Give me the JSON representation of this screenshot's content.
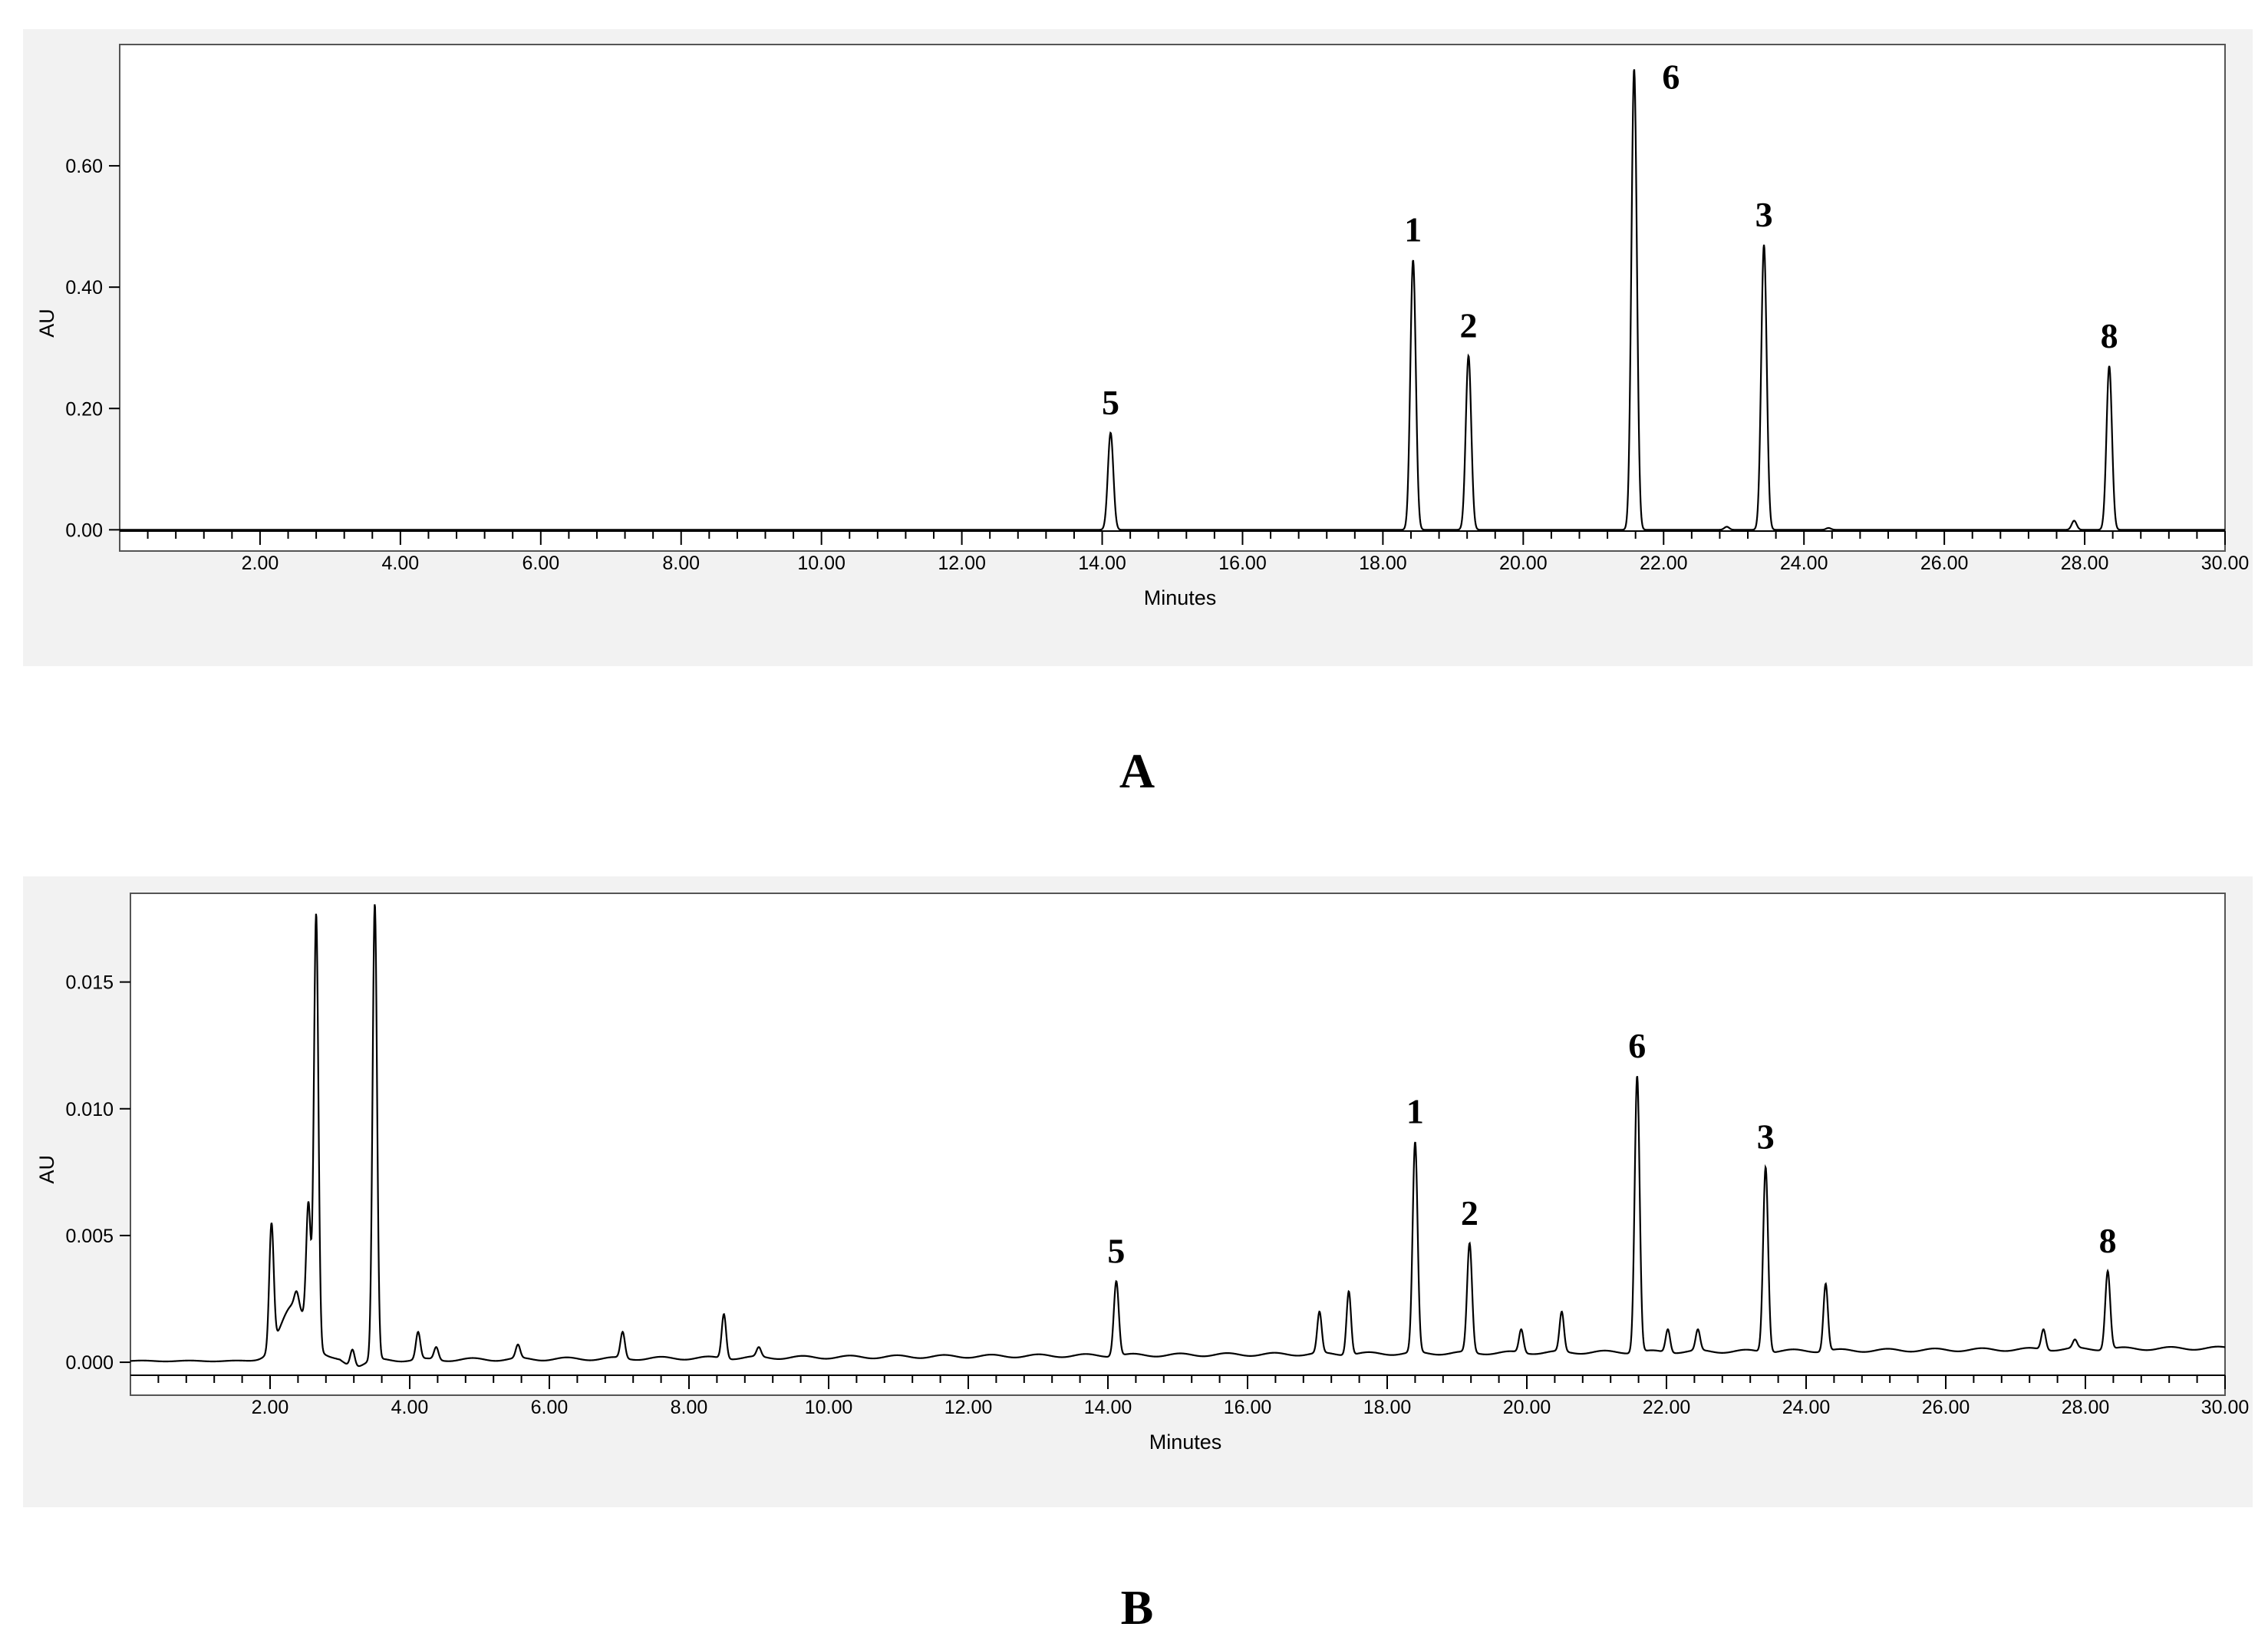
{
  "chart_data": [
    {
      "panel": "A",
      "type": "line",
      "caption": "A",
      "xlabel": "Minutes",
      "ylabel": "AU",
      "xlim": [
        0,
        30
      ],
      "ylim": [
        -0.035,
        0.8
      ],
      "x_ticks": [
        2,
        4,
        6,
        8,
        10,
        12,
        14,
        16,
        18,
        20,
        22,
        24,
        26,
        28,
        30
      ],
      "x_tick_labels": [
        "2.00",
        "4.00",
        "6.00",
        "8.00",
        "10.00",
        "12.00",
        "14.00",
        "16.00",
        "18.00",
        "20.00",
        "22.00",
        "24.00",
        "26.00",
        "28.00",
        "30.00"
      ],
      "y_ticks": [
        0,
        0.2,
        0.4,
        0.6
      ],
      "y_tick_labels": [
        "0.00",
        "0.20",
        "0.40",
        "0.60"
      ],
      "baseline": 0.0,
      "peaks": [
        {
          "label": "5",
          "x": 14.12,
          "y": 0.16
        },
        {
          "label": "1",
          "x": 18.43,
          "y": 0.445
        },
        {
          "label": "2",
          "x": 19.22,
          "y": 0.287
        },
        {
          "label": "6",
          "x": 21.58,
          "y": 0.76
        },
        {
          "label": "3",
          "x": 23.43,
          "y": 0.47
        },
        {
          "label": "8",
          "x": 28.35,
          "y": 0.27
        }
      ],
      "minor_peaks": [
        {
          "x": 22.9,
          "y": 0.005
        },
        {
          "x": 24.35,
          "y": 0.003
        },
        {
          "x": 27.85,
          "y": 0.015
        }
      ]
    },
    {
      "panel": "B",
      "type": "line",
      "caption": "B",
      "xlabel": "Minutes",
      "ylabel": "AU",
      "xlim": [
        0,
        30
      ],
      "ylim": [
        -0.0013,
        0.0185
      ],
      "x_ticks": [
        2,
        4,
        6,
        8,
        10,
        12,
        14,
        16,
        18,
        20,
        22,
        24,
        26,
        28,
        30
      ],
      "x_tick_labels": [
        "2.00",
        "4.00",
        "6.00",
        "8.00",
        "10.00",
        "12.00",
        "14.00",
        "16.00",
        "18.00",
        "20.00",
        "22.00",
        "24.00",
        "26.00",
        "28.00",
        "30.00"
      ],
      "y_ticks": [
        0,
        0.005,
        0.01,
        0.015
      ],
      "y_tick_labels": [
        "0.000",
        "0.005",
        "0.010",
        "0.015"
      ],
      "peaks": [
        {
          "label": "5",
          "x": 14.12,
          "y": 0.0032
        },
        {
          "label": "1",
          "x": 18.4,
          "y": 0.0087
        },
        {
          "label": "2",
          "x": 19.18,
          "y": 0.0047
        },
        {
          "label": "6",
          "x": 21.58,
          "y": 0.0113
        },
        {
          "label": "3",
          "x": 23.42,
          "y": 0.0077
        },
        {
          "label": "8",
          "x": 28.32,
          "y": 0.0036
        }
      ],
      "minor_peaks": [
        {
          "x": 2.02,
          "y": 0.0055
        },
        {
          "x": 2.38,
          "y": 0.0028
        },
        {
          "x": 2.55,
          "y": 0.0063
        },
        {
          "x": 2.66,
          "y": 0.0177
        },
        {
          "x": 3.18,
          "y": 0.0005
        },
        {
          "x": 3.5,
          "y": 0.0181
        },
        {
          "x": 4.12,
          "y": 0.0012
        },
        {
          "x": 4.38,
          "y": 0.0006
        },
        {
          "x": 5.55,
          "y": 0.0007
        },
        {
          "x": 7.05,
          "y": 0.0012
        },
        {
          "x": 8.5,
          "y": 0.0019
        },
        {
          "x": 9.0,
          "y": 0.0006
        },
        {
          "x": 17.03,
          "y": 0.002
        },
        {
          "x": 17.45,
          "y": 0.0028
        },
        {
          "x": 19.92,
          "y": 0.0013
        },
        {
          "x": 20.5,
          "y": 0.002
        },
        {
          "x": 22.02,
          "y": 0.0013
        },
        {
          "x": 22.45,
          "y": 0.0013
        },
        {
          "x": 24.28,
          "y": 0.0031
        },
        {
          "x": 27.4,
          "y": 0.0013
        },
        {
          "x": 27.85,
          "y": 0.0009
        }
      ]
    }
  ]
}
